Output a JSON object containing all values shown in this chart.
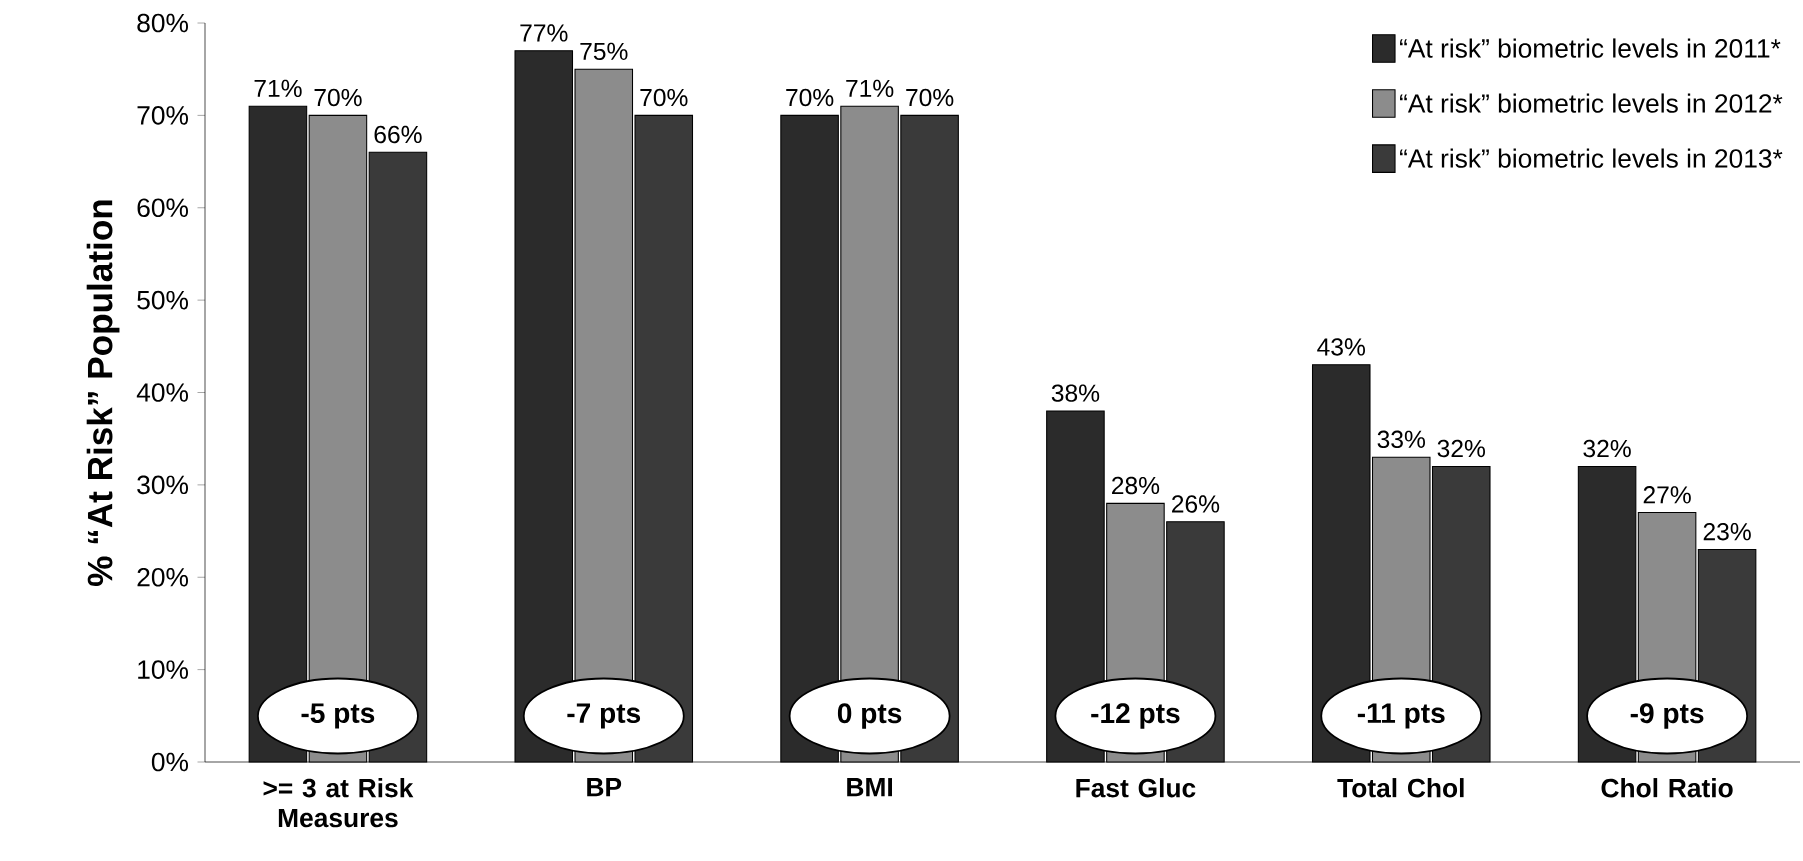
{
  "chart_data": {
    "type": "bar",
    "ylabel": "% “At Risk” Population",
    "categories": [
      ">= 3 at Risk Measures",
      "BP",
      "BMI",
      "Fast Gluc",
      "Total Chol",
      "Chol Ratio"
    ],
    "series": [
      {
        "name": "“At risk” biometric levels in 2011*",
        "color": "#2b2b2b",
        "values": [
          71,
          77,
          70,
          38,
          43,
          32
        ],
        "value_labels": [
          "71%",
          "77%",
          "70%",
          "38%",
          "43%",
          "32%"
        ]
      },
      {
        "name": "“At risk” biometric levels in 2012*",
        "color": "#8c8c8c",
        "values": [
          70,
          75,
          71,
          28,
          33,
          27
        ],
        "value_labels": [
          "70%",
          "75%",
          "71%",
          "28%",
          "33%",
          "27%"
        ]
      },
      {
        "name": "“At risk” biometric levels in 2013*",
        "color": "#3a3a3a",
        "values": [
          66,
          70,
          70,
          26,
          32,
          23
        ],
        "value_labels": [
          "66%",
          "70%",
          "70%",
          "26%",
          "32%",
          "23%"
        ]
      }
    ],
    "ylim": [
      0,
      80
    ],
    "yticks": [
      {
        "value": 0,
        "label": "0%"
      },
      {
        "value": 10,
        "label": "10%"
      },
      {
        "value": 20,
        "label": "20%"
      },
      {
        "value": 30,
        "label": "30%"
      },
      {
        "value": 40,
        "label": "40%"
      },
      {
        "value": 50,
        "label": "50%"
      },
      {
        "value": 60,
        "label": "60%"
      },
      {
        "value": 70,
        "label": "70%"
      },
      {
        "value": 80,
        "label": "80%"
      }
    ],
    "annotations": [
      "-5 pts",
      "-7 pts",
      "0 pts",
      "-12 pts",
      "-11 pts",
      "-9 pts"
    ],
    "grid": false,
    "legend": "top right"
  }
}
